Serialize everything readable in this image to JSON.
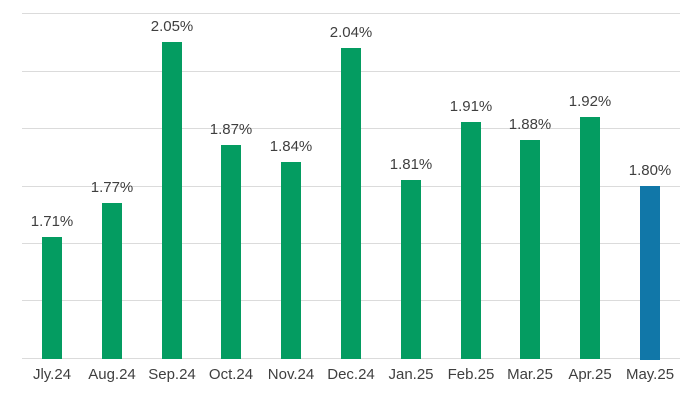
{
  "chart_data": {
    "type": "bar",
    "categories": [
      "Jly.24",
      "Aug.24",
      "Sep.24",
      "Oct.24",
      "Nov.24",
      "Dec.24",
      "Jan.25",
      "Feb.25",
      "Mar.25",
      "Apr.25",
      "May.25"
    ],
    "values": [
      1.71,
      1.77,
      2.05,
      1.87,
      1.84,
      2.04,
      1.81,
      1.91,
      1.88,
      1.92,
      1.8
    ],
    "value_labels": [
      "1.71%",
      "1.77%",
      "2.05%",
      "1.87%",
      "1.84%",
      "2.04%",
      "1.81%",
      "1.91%",
      "1.88%",
      "1.92%",
      "1.80%"
    ],
    "ylim": [
      1.5,
      2.1
    ],
    "ytick_step": 0.1,
    "ytick_labels_shown": false,
    "grid": true,
    "legend": null,
    "highlight_index": 10,
    "bar_colors": {
      "default": "#049c61",
      "highlight": "#1177a8"
    }
  },
  "colors": {
    "background": "#ffffff",
    "gridline": "#dbdbdb",
    "label_text": "#3f3f3f",
    "bar_green": "#049c61",
    "bar_blue": "#1177a8"
  }
}
